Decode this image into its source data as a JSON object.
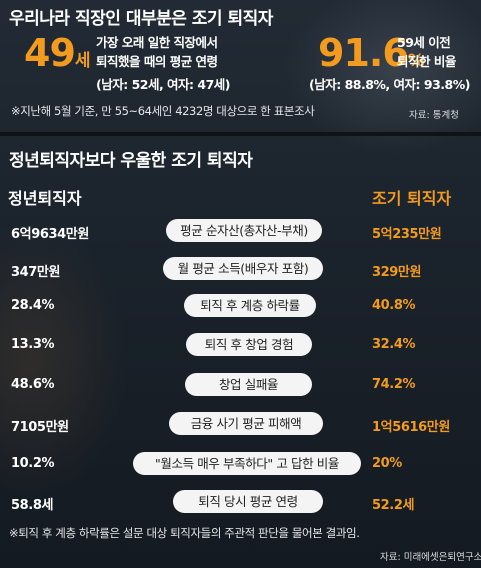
{
  "header": {
    "title": "우리나라 직장인 대부분은 조기 퇴직자"
  },
  "stats": {
    "left": {
      "value": "49",
      "unit": "세",
      "line1": "가장 오래 일한 직장에서",
      "line2": "퇴직했을 때의 평균 연령",
      "line3": "(남자: 52세, 여자: 47세)"
    },
    "right": {
      "value": "91.6",
      "unit": "%",
      "line1": "59세 이전",
      "line2": "퇴직한 비율",
      "line3": "(남자: 88.8%, 여자: 93.8%)"
    }
  },
  "note1": "※지난해 5월 기준, 만 55~64세인 4232명 대상으로 한 표본조사",
  "source1": "자료: 통계청",
  "section": {
    "title": "정년퇴직자보다 우울한 조기 퇴직자",
    "left_header": "정년퇴직자",
    "right_header": "조기 퇴직자"
  },
  "rows": [
    {
      "left": "6억9634만원",
      "label": "평균 순자산(총자산-부채)",
      "right": "5억235만원"
    },
    {
      "left": "347만원",
      "label": "월 평균 소득(배우자 포함)",
      "right": "329만원"
    },
    {
      "left": "28.4%",
      "label": "퇴직 후 계층 하락률",
      "right": "40.8%"
    },
    {
      "left": "13.3%",
      "label": "퇴직 후 창업 경험",
      "right": "32.4%"
    },
    {
      "left": "48.6%",
      "label": "창업 실패율",
      "right": "74.2%"
    },
    {
      "left": "7105만원",
      "label": "금융 사기 평균 피해액",
      "right": "1억5616만원"
    },
    {
      "left": "10.2%",
      "label": "\"월소득 매우 부족하다\" 고 답한 비율",
      "right": "20%"
    },
    {
      "left": "58.8세",
      "label": "퇴직 당시 평균 연령",
      "right": "52.2세"
    }
  ],
  "note2": "※퇴직 후 계층 하락률은 설문 대상 퇴직자들의 주관적 판단을 물어본 결과임.",
  "source2": "자료: 미래에셋은퇴연구소",
  "colors": {
    "accent": "#f39b1f",
    "background": "#1d2530",
    "pill": "#f4f4f4"
  }
}
